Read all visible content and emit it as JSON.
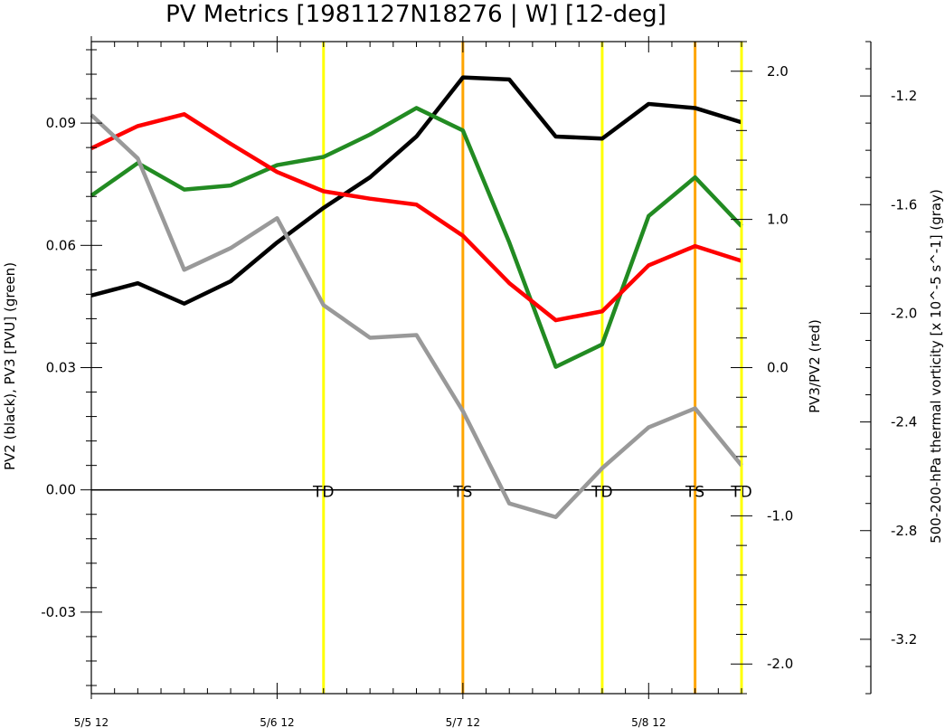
{
  "chart_data": {
    "type": "line",
    "title": "PV Metrics [1981127N18276 | W] [12-deg]",
    "ylabel_left": "PV2 (black), PV3 [PVU] (green)",
    "ylabel_right1": "PV3/PV2 (red)",
    "ylabel_right2": "500-200-hPa thermal vorticity [x 10^-5 s^-1] (gray)",
    "xlim": [
      0,
      14
    ],
    "x_ticks": [
      {
        "x": 0,
        "label": "5/5 12"
      },
      {
        "x": 4,
        "label": "5/6 12"
      },
      {
        "x": 8,
        "label": "5/7 12"
      },
      {
        "x": 12,
        "label": "5/8 12"
      }
    ],
    "axes": {
      "left": {
        "ylim": [
          -0.05,
          0.11
        ],
        "ticks": [
          {
            "v": 0.09,
            "label": "0.09"
          },
          {
            "v": 0.06,
            "label": "0.06"
          },
          {
            "v": 0.03,
            "label": "0.03"
          },
          {
            "v": 0.0,
            "label": "0.00"
          },
          {
            "v": -0.03,
            "label": "-0.03"
          }
        ]
      },
      "right1": {
        "ylim": [
          -2.2,
          2.2
        ],
        "ticks": [
          {
            "v": 2.0,
            "label": "2.0"
          },
          {
            "v": 1.0,
            "label": "1.0"
          },
          {
            "v": 0.0,
            "label": "0.0"
          },
          {
            "v": -1.0,
            "label": "-1.0"
          },
          {
            "v": -2.0,
            "label": "-2.0"
          }
        ]
      },
      "right2": {
        "ylim": [
          -3.4,
          -1.0
        ],
        "ticks": [
          {
            "v": -1.2,
            "label": "-1.2"
          },
          {
            "v": -1.6,
            "label": "-1.6"
          },
          {
            "v": -2.0,
            "label": "-2.0"
          },
          {
            "v": -2.4,
            "label": "-2.4"
          },
          {
            "v": -2.8,
            "label": "-2.8"
          },
          {
            "v": -3.2,
            "label": "-3.2"
          }
        ]
      }
    },
    "x": [
      0,
      1,
      2,
      3,
      4,
      5,
      6,
      7,
      8,
      9,
      10,
      11,
      12,
      13,
      14
    ],
    "series": [
      {
        "color": "#000000",
        "axis": "left",
        "values": [
          0.0477,
          0.0507,
          0.0457,
          0.0512,
          0.0607,
          0.0692,
          0.0767,
          0.0867,
          0.1012,
          0.1007,
          0.0867,
          0.0862,
          0.0947,
          0.0937,
          0.0902
        ]
      },
      {
        "color": "#228b22",
        "axis": "left",
        "values": [
          0.0722,
          0.0802,
          0.0737,
          0.0747,
          0.0797,
          0.0817,
          0.0872,
          0.0937,
          0.0882,
          0.0607,
          0.0302,
          0.0357,
          0.0672,
          0.0767,
          0.0647
        ]
      },
      {
        "color": "#ff0000",
        "axis": "right1",
        "values": [
          1.48,
          1.63,
          1.71,
          1.51,
          1.32,
          1.19,
          1.14,
          1.1,
          0.89,
          0.57,
          0.32,
          0.38,
          0.69,
          0.82,
          0.72
        ]
      },
      {
        "color": "#999999",
        "axis": "right2",
        "values": [
          -1.27,
          -1.43,
          -1.84,
          -1.76,
          -1.65,
          -1.97,
          -2.09,
          -2.08,
          -2.36,
          -2.7,
          -2.75,
          -2.57,
          -2.42,
          -2.35,
          -2.56
        ]
      }
    ],
    "event_lines": [
      {
        "x": 5,
        "label": "TD",
        "color": "#ffff00"
      },
      {
        "x": 8,
        "label": "TS",
        "color": "#ffa500"
      },
      {
        "x": 11,
        "label": "TD",
        "color": "#ffff00"
      },
      {
        "x": 13,
        "label": "TS",
        "color": "#ffa500"
      },
      {
        "x": 14,
        "label": "TD",
        "color": "#ffff00"
      }
    ],
    "zero_line": 0.0
  }
}
